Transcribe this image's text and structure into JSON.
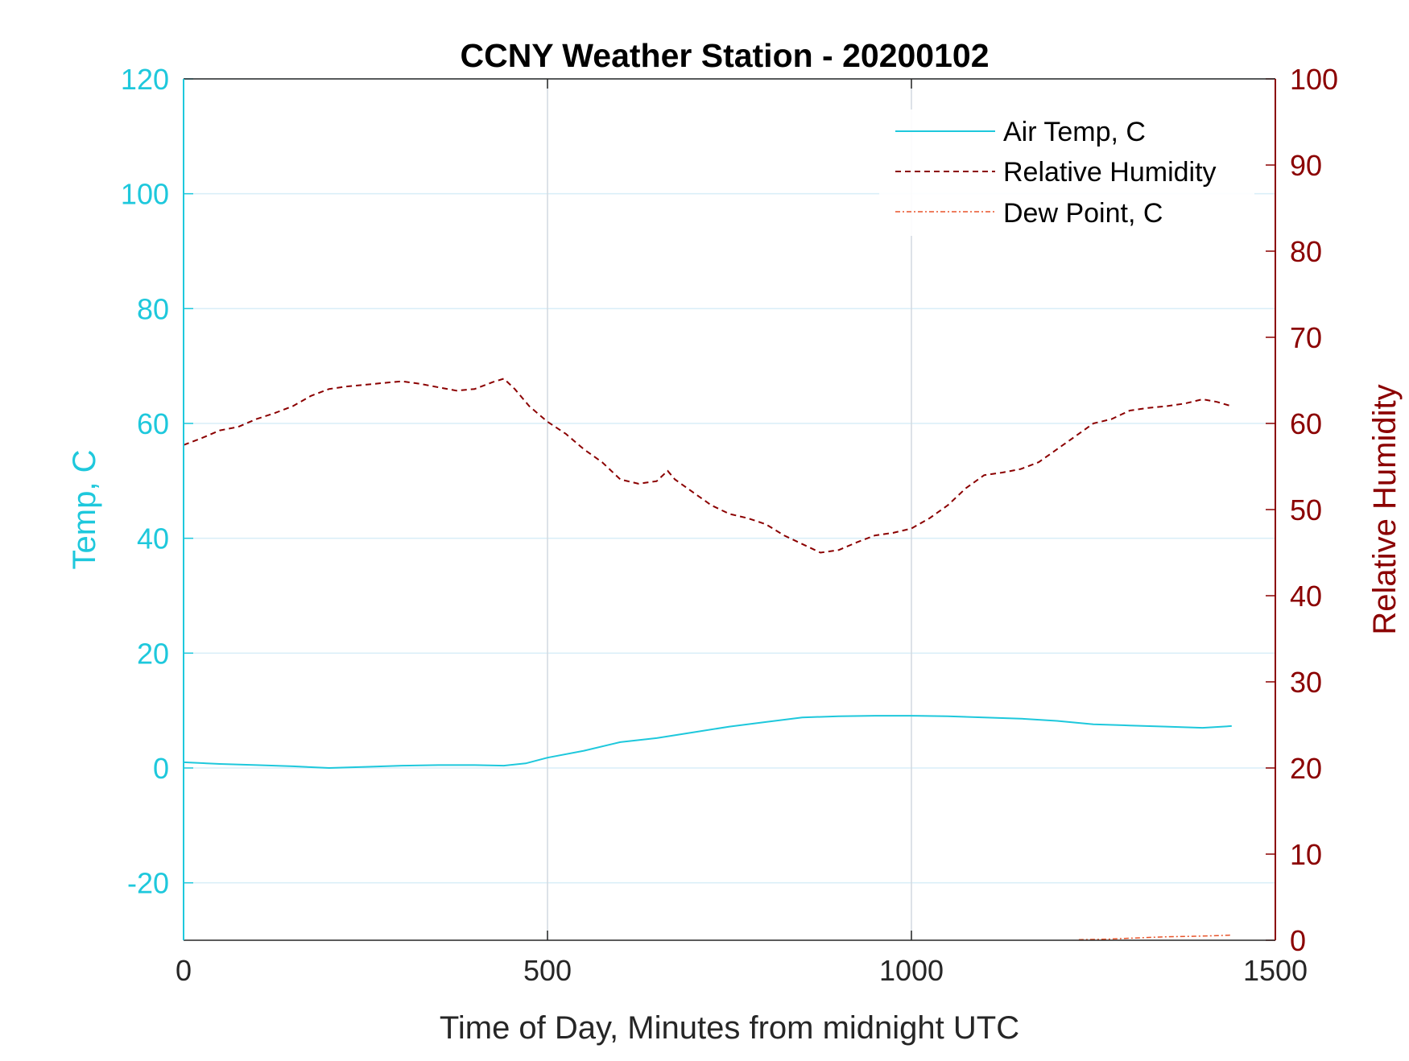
{
  "chart_data": {
    "type": "line",
    "title": "CCNY Weather Station - 20200102",
    "xlabel": "Time of Day, Minutes from midnight UTC",
    "ylabel_left": "Temp, C",
    "ylabel_right": "Relative Humidity",
    "xlim": [
      0,
      1500
    ],
    "ylim_left": [
      -30,
      120
    ],
    "ylim_right": [
      0,
      100
    ],
    "x_ticks": [
      0,
      500,
      1000,
      1500
    ],
    "x_tick_labels": [
      "0",
      "500",
      "1000",
      "1500"
    ],
    "y_left_ticks": [
      -20,
      0,
      20,
      40,
      60,
      80,
      100,
      120
    ],
    "y_left_tick_labels": [
      "-20",
      "0",
      "20",
      "40",
      "60",
      "80",
      "100",
      "120"
    ],
    "y_right_ticks": [
      0,
      10,
      20,
      30,
      40,
      50,
      60,
      70,
      80,
      90,
      100
    ],
    "y_right_tick_labels": [
      "0",
      "10",
      "20",
      "30",
      "40",
      "50",
      "60",
      "70",
      "80",
      "90",
      "100"
    ],
    "grid": true,
    "legend_position": "top-right",
    "colors": {
      "left_axis": "#1ec8dc",
      "right_axis": "#8b0000",
      "grid": "#d8eef8",
      "grid_x": "#d2d9e0",
      "text": "#262626"
    },
    "series": [
      {
        "name": "Air Temp, C",
        "axis": "left",
        "style": "solid",
        "color": "#1ec8dc",
        "x": [
          0,
          50,
          100,
          150,
          200,
          250,
          300,
          350,
          400,
          440,
          470,
          500,
          550,
          600,
          650,
          700,
          750,
          800,
          850,
          900,
          950,
          1000,
          1050,
          1100,
          1150,
          1200,
          1250,
          1300,
          1350,
          1400,
          1440
        ],
        "y": [
          1.0,
          0.7,
          0.5,
          0.3,
          0.0,
          0.2,
          0.4,
          0.5,
          0.5,
          0.4,
          0.8,
          1.8,
          3.0,
          4.5,
          5.2,
          6.2,
          7.2,
          8.0,
          8.8,
          9.0,
          9.1,
          9.1,
          9.0,
          8.8,
          8.6,
          8.2,
          7.6,
          7.4,
          7.2,
          7.0,
          7.3
        ]
      },
      {
        "name": "Relative Humidity",
        "axis": "right",
        "style": "dashed",
        "color": "#8b0000",
        "x": [
          0,
          25,
          50,
          75,
          100,
          125,
          150,
          175,
          200,
          225,
          250,
          275,
          300,
          325,
          350,
          375,
          400,
          425,
          440,
          455,
          475,
          500,
          525,
          550,
          575,
          600,
          625,
          650,
          665,
          675,
          700,
          725,
          750,
          775,
          800,
          825,
          850,
          875,
          900,
          925,
          950,
          975,
          1000,
          1025,
          1050,
          1075,
          1100,
          1125,
          1150,
          1175,
          1200,
          1225,
          1250,
          1275,
          1300,
          1325,
          1350,
          1375,
          1400,
          1420,
          1440
        ],
        "y": [
          57.5,
          58.3,
          59.2,
          59.6,
          60.5,
          61.2,
          62.0,
          63.2,
          64.0,
          64.3,
          64.5,
          64.7,
          64.9,
          64.6,
          64.2,
          63.8,
          64.0,
          64.8,
          65.2,
          64.0,
          62.0,
          60.2,
          58.8,
          57.0,
          55.5,
          53.5,
          53.0,
          53.3,
          54.5,
          53.5,
          52.0,
          50.5,
          49.5,
          49.0,
          48.3,
          47.0,
          46.0,
          45.0,
          45.3,
          46.2,
          47.0,
          47.3,
          47.8,
          49.0,
          50.5,
          52.5,
          54.0,
          54.3,
          54.7,
          55.5,
          57.0,
          58.5,
          60.0,
          60.5,
          61.5,
          61.8,
          62.0,
          62.3,
          62.8,
          62.5,
          62.0
        ]
      },
      {
        "name": "Dew Point, C",
        "axis": "left",
        "style": "dashdot",
        "color": "#e8542a",
        "x": [
          1230,
          1270,
          1310,
          1350,
          1390,
          1420,
          1440
        ],
        "y": [
          -29.9,
          -29.8,
          -29.6,
          -29.4,
          -29.3,
          -29.2,
          -29.1
        ]
      }
    ]
  }
}
